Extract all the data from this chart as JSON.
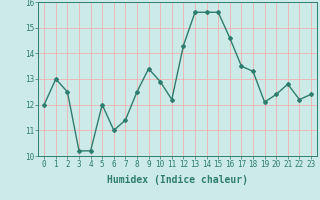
{
  "x": [
    0,
    1,
    2,
    3,
    4,
    5,
    6,
    7,
    8,
    9,
    10,
    11,
    12,
    13,
    14,
    15,
    16,
    17,
    18,
    19,
    20,
    21,
    22,
    23
  ],
  "y": [
    12.0,
    13.0,
    12.5,
    10.2,
    10.2,
    12.0,
    11.0,
    11.4,
    12.5,
    13.4,
    12.9,
    12.2,
    14.3,
    15.6,
    15.6,
    15.6,
    14.6,
    13.5,
    13.3,
    12.1,
    12.4,
    12.8,
    12.2,
    12.4
  ],
  "line_color": "#2e7d6e",
  "marker": "D",
  "marker_size": 2,
  "linewidth": 1.0,
  "xlabel": "Humidex (Indice chaleur)",
  "xlabel_fontsize": 7,
  "ylim": [
    10,
    16
  ],
  "xlim": [
    -0.5,
    23.5
  ],
  "yticks": [
    10,
    11,
    12,
    13,
    14,
    15,
    16
  ],
  "xticks": [
    0,
    1,
    2,
    3,
    4,
    5,
    6,
    7,
    8,
    9,
    10,
    11,
    12,
    13,
    14,
    15,
    16,
    17,
    18,
    19,
    20,
    21,
    22,
    23
  ],
  "xtick_labels": [
    "0",
    "1",
    "2",
    "3",
    "4",
    "5",
    "6",
    "7",
    "8",
    "9",
    "10",
    "11",
    "12",
    "13",
    "14",
    "15",
    "16",
    "17",
    "18",
    "19",
    "20",
    "21",
    "22",
    "23"
  ],
  "bg_color": "#cceae8",
  "grid_color": "#f0b0b0",
  "tick_fontsize": 5.5
}
